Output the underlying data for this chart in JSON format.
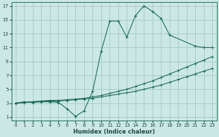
{
  "xlabel": "Humidex (Indice chaleur)",
  "xlim": [
    -0.5,
    23.5
  ],
  "ylim": [
    0.5,
    17.5
  ],
  "xticks": [
    0,
    1,
    2,
    3,
    4,
    5,
    6,
    7,
    8,
    9,
    10,
    11,
    12,
    13,
    14,
    15,
    16,
    17,
    18,
    19,
    20,
    21,
    22,
    23
  ],
  "yticks": [
    1,
    3,
    5,
    7,
    9,
    11,
    13,
    15,
    17
  ],
  "bg_color": "#cce8e4",
  "grid_color": "#a0c8c2",
  "line_color": "#1a6b5a",
  "line1_x": [
    0,
    1,
    2,
    3,
    4,
    5,
    6,
    7,
    8,
    9,
    10,
    11,
    12,
    13,
    14,
    15,
    16,
    17,
    18,
    21,
    22,
    23
  ],
  "line1_y": [
    3,
    3.2,
    3.1,
    3.2,
    3.2,
    3.1,
    2.2,
    1.1,
    1.9,
    4.7,
    10.5,
    14.8,
    14.8,
    12.5,
    15.6,
    17.0,
    16.2,
    15.2,
    12.8,
    11.2,
    11.0,
    11.0
  ],
  "line2_x": [
    0,
    1,
    2,
    3,
    4,
    5,
    6,
    7,
    8,
    9,
    10,
    11,
    12,
    13,
    14,
    15,
    16,
    17,
    18,
    19,
    20,
    21,
    22,
    23
  ],
  "line2_y": [
    3.0,
    3.1,
    3.2,
    3.3,
    3.4,
    3.4,
    3.5,
    3.6,
    3.7,
    3.9,
    4.1,
    4.4,
    4.7,
    5.0,
    5.4,
    5.8,
    6.2,
    6.7,
    7.2,
    7.7,
    8.2,
    8.7,
    9.2,
    9.7
  ],
  "line3_x": [
    0,
    1,
    2,
    3,
    4,
    5,
    6,
    7,
    8,
    9,
    10,
    11,
    12,
    13,
    14,
    15,
    16,
    17,
    18,
    19,
    20,
    21,
    22,
    23
  ],
  "line3_y": [
    3.0,
    3.1,
    3.2,
    3.3,
    3.3,
    3.3,
    3.4,
    3.5,
    3.6,
    3.7,
    3.9,
    4.1,
    4.3,
    4.5,
    4.7,
    5.0,
    5.3,
    5.6,
    6.0,
    6.4,
    6.8,
    7.2,
    7.6,
    8.0
  ],
  "xlabel_fontsize": 6,
  "tick_fontsize": 5,
  "lw": 0.8,
  "ms": 2.0
}
